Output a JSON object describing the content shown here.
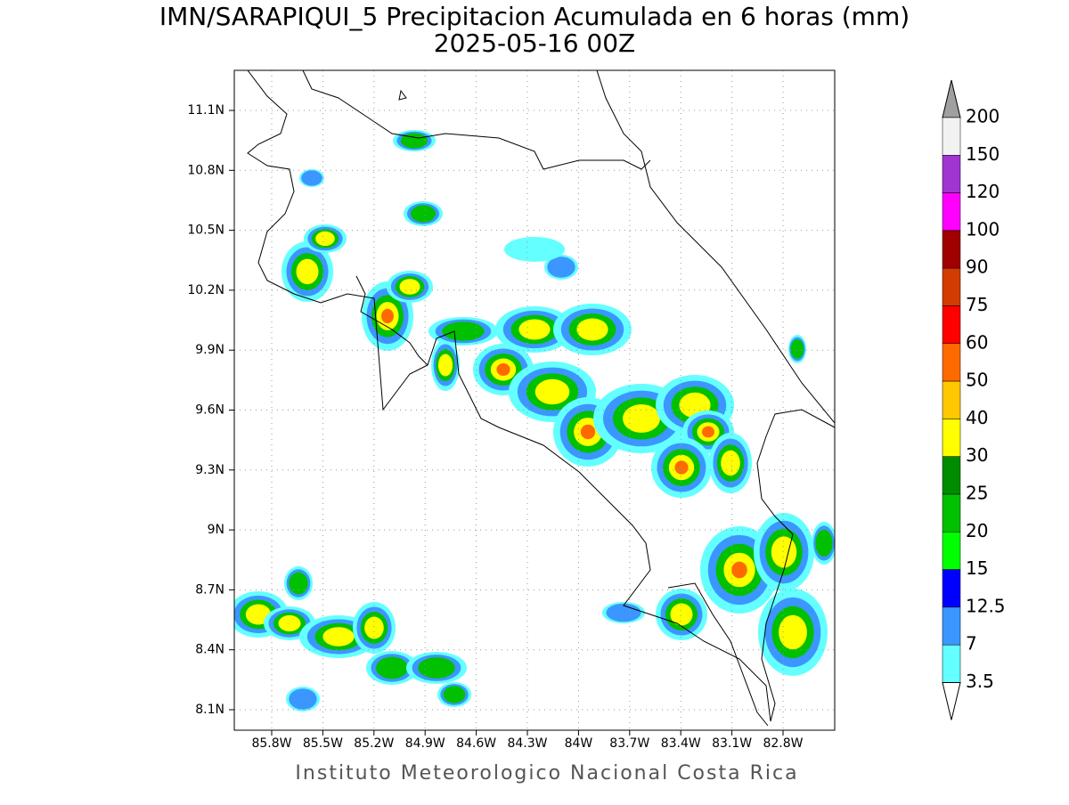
{
  "title": "IMN/SARAPIQUI_5 Precipitacion Acumulada en 6 horas (mm)",
  "subtitle": "2025-05-16 00Z",
  "lat_labels": [
    "11.1N",
    "10.8N",
    "10.5N",
    "10.2N",
    "9.9N",
    "9.6N",
    "9.3N",
    "9N",
    "8.7N",
    "8.4N",
    "8.1N"
  ],
  "lon_labels": [
    "85.8W",
    "85.5W",
    "85.2W",
    "84.9W",
    "84.6W",
    "84.3W",
    "84W",
    "83.7W",
    "83.4W",
    "83.1W",
    "82.8W"
  ],
  "colorbar": {
    "labels": [
      "200",
      "150",
      "120",
      "100",
      "90",
      "75",
      "60",
      "50",
      "40",
      "30",
      "25",
      "20",
      "15",
      "12.5",
      "7",
      "3.5"
    ],
    "colors": [
      "#f2f2f2",
      "#a035d2",
      "#ff00ff",
      "#a00000",
      "#d23c00",
      "#ff0000",
      "#ff6a00",
      "#ffc800",
      "#ffff00",
      "#008c00",
      "#00c000",
      "#00ff00",
      "#0000ff",
      "#3c96ff",
      "#64ffff"
    ],
    "over_color": "#a0a0a0",
    "under_color": "#ffffff"
  },
  "credit": "Instituto Meteorologico Nacional Costa Rica"
}
